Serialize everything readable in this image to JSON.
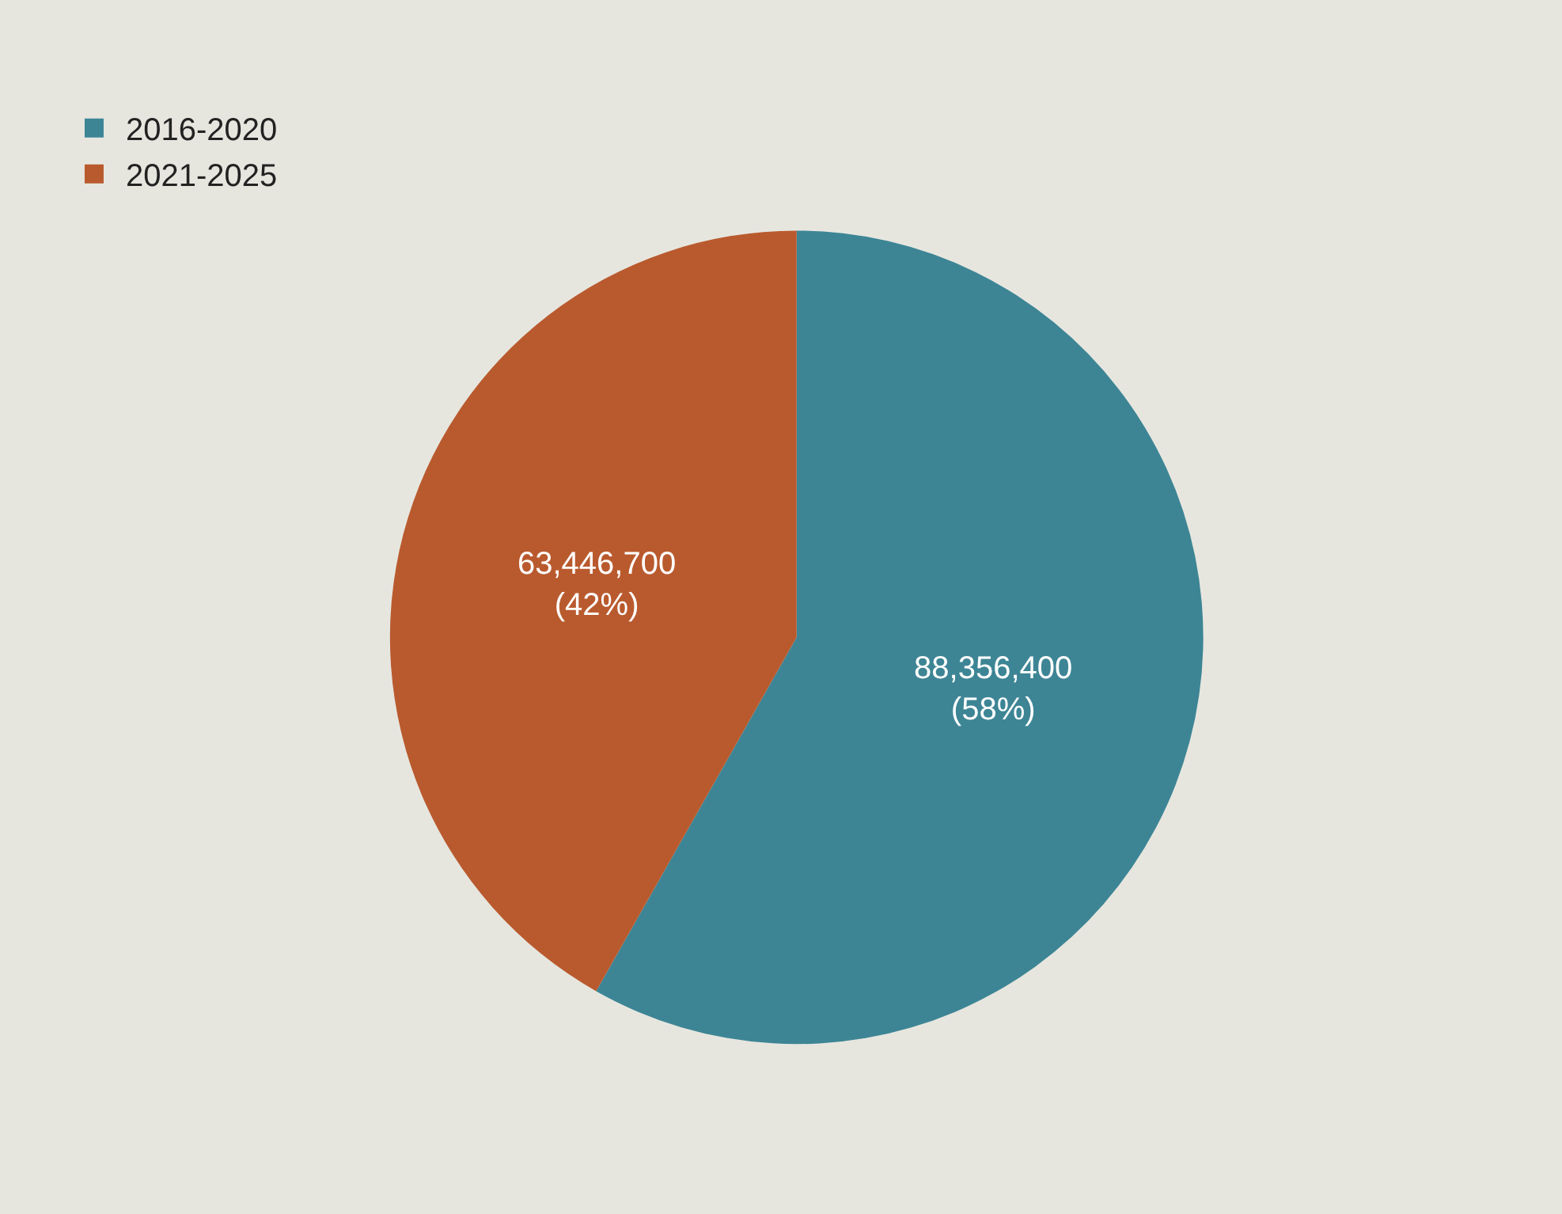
{
  "chart_data": {
    "type": "pie",
    "categories": [
      "2016-2020",
      "2021-2025"
    ],
    "values": [
      88356400,
      63446700
    ],
    "value_labels": [
      "88,356,400\n(58%)",
      "63,446,700\n(42%)"
    ],
    "colors": [
      "#3d8595",
      "#b95a2e"
    ],
    "legend": "top left"
  }
}
